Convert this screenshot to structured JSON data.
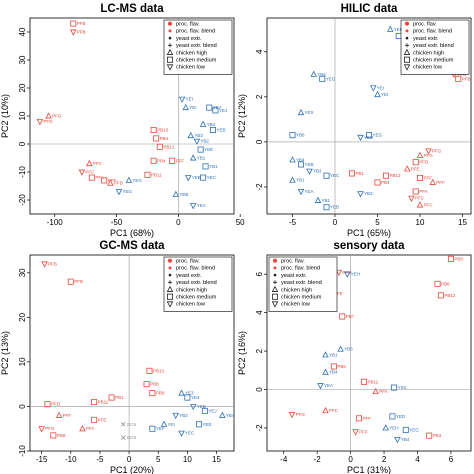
{
  "colors": {
    "red": "#e8473b",
    "blue": "#2e6fb5",
    "black": "#222222",
    "grey": "#8a8a8a"
  },
  "legend_entries": [
    {
      "label": "proc. flav.",
      "shape": "circle-filled",
      "color": "red"
    },
    {
      "label": "proc. flav. blend",
      "shape": "circle-filled-small",
      "color": "red"
    },
    {
      "label": "yeast extr.",
      "shape": "dot",
      "color": "black"
    },
    {
      "label": "yeast extr. blend",
      "shape": "plus",
      "color": "black"
    },
    {
      "label": "chicken high",
      "shape": "triangle",
      "color": "black"
    },
    {
      "label": "chicken medium",
      "shape": "square",
      "color": "black"
    },
    {
      "label": "chicken low",
      "shape": "triangle-down",
      "color": "black"
    }
  ],
  "chart_data": [
    {
      "type": "scatter",
      "title": "LC-MS data",
      "xlabel": "PC1 (68%)",
      "ylabel": "PC2 (10%)",
      "xlim": [
        -120,
        45
      ],
      "ylim": [
        -25,
        45
      ],
      "xticks": [
        -100,
        -50,
        0,
        50
      ],
      "yticks": [
        -20,
        -10,
        0,
        10,
        20,
        30,
        40
      ],
      "reference_lines": {
        "x": 0,
        "y": 0
      },
      "legend": "top-right",
      "points": [
        {
          "x": -85,
          "y": 43,
          "label": "PFB",
          "color": "red",
          "shape": "square"
        },
        {
          "x": -85,
          "y": 40,
          "label": "PFB",
          "color": "red",
          "shape": "triangle-down"
        },
        {
          "x": -105,
          "y": 10,
          "label": "PFG",
          "color": "red",
          "shape": "triangle"
        },
        {
          "x": -112,
          "y": 8,
          "label": "PFG",
          "color": "red",
          "shape": "triangle-down"
        },
        {
          "x": -72,
          "y": -7,
          "label": "PFC",
          "color": "red",
          "shape": "triangle"
        },
        {
          "x": -78,
          "y": -10,
          "label": "PFC",
          "color": "red",
          "shape": "triangle-down"
        },
        {
          "x": -70,
          "y": -12,
          "label": "PFA",
          "color": "red",
          "shape": "square"
        },
        {
          "x": -60,
          "y": -13,
          "label": "PFE",
          "color": "red",
          "shape": "square"
        },
        {
          "x": -55,
          "y": -14,
          "label": "PFD",
          "color": "red",
          "shape": "triangle"
        },
        {
          "x": -20,
          "y": 5,
          "label": "PB13",
          "color": "red",
          "shape": "square"
        },
        {
          "x": -18,
          "y": 2,
          "label": "PB4",
          "color": "red",
          "shape": "square"
        },
        {
          "x": -15,
          "y": -1,
          "label": "PB12",
          "color": "red",
          "shape": "square"
        },
        {
          "x": -20,
          "y": -6,
          "label": "PB4",
          "color": "red",
          "shape": "square"
        },
        {
          "x": -25,
          "y": -11,
          "label": "PB11",
          "color": "red",
          "shape": "square"
        },
        {
          "x": -40,
          "y": -13,
          "label": "YEG",
          "color": "blue",
          "shape": "triangle"
        },
        {
          "x": -48,
          "y": -17,
          "label": "YEG",
          "color": "blue",
          "shape": "triangle-down"
        },
        {
          "x": 5,
          "y": 40,
          "label": "YEF",
          "color": "blue",
          "shape": "triangle"
        },
        {
          "x": 8,
          "y": 37,
          "label": "YEF",
          "color": "blue",
          "shape": "square"
        },
        {
          "x": 3,
          "y": 16,
          "label": "YEI",
          "color": "blue",
          "shape": "triangle-down"
        },
        {
          "x": 6,
          "y": 13,
          "label": "YEI",
          "color": "blue",
          "shape": "triangle"
        },
        {
          "x": 25,
          "y": 13,
          "label": "YEJ",
          "color": "blue",
          "shape": "square"
        },
        {
          "x": 30,
          "y": 12,
          "label": "YEJ",
          "color": "blue",
          "shape": "square"
        },
        {
          "x": 20,
          "y": 7,
          "label": "YB4",
          "color": "blue",
          "shape": "triangle"
        },
        {
          "x": 28,
          "y": 5,
          "label": "YEB",
          "color": "blue",
          "shape": "square"
        },
        {
          "x": 10,
          "y": 3,
          "label": "YB3",
          "color": "blue",
          "shape": "triangle"
        },
        {
          "x": 15,
          "y": 1,
          "label": "YB2",
          "color": "blue",
          "shape": "triangle-down"
        },
        {
          "x": 18,
          "y": -2,
          "label": "YEE",
          "color": "blue",
          "shape": "square"
        },
        {
          "x": 12,
          "y": -5,
          "label": "YB1",
          "color": "blue",
          "shape": "triangle"
        },
        {
          "x": 22,
          "y": -8,
          "label": "YB1",
          "color": "blue",
          "shape": "square"
        },
        {
          "x": 20,
          "y": -12,
          "label": "YEC",
          "color": "blue",
          "shape": "square"
        },
        {
          "x": 8,
          "y": -12,
          "label": "YEB",
          "color": "blue",
          "shape": "triangle-down"
        },
        {
          "x": -2,
          "y": -18,
          "label": "YEB",
          "color": "blue",
          "shape": "triangle"
        },
        {
          "x": 12,
          "y": -22,
          "label": "YEA",
          "color": "blue",
          "shape": "triangle-down"
        },
        {
          "x": -5,
          "y": -6,
          "label": "PFF",
          "color": "red",
          "shape": "square"
        }
      ]
    },
    {
      "type": "scatter",
      "title": "HILIC data",
      "xlabel": "PC1 (65%)",
      "ylabel": "PC2 (12%)",
      "xlim": [
        -8,
        16
      ],
      "ylim": [
        -3.2,
        5.5
      ],
      "xticks": [
        -5,
        0,
        5,
        10,
        15
      ],
      "yticks": [
        -2,
        0,
        2,
        4
      ],
      "reference_lines": {
        "x": 0,
        "y": 0
      },
      "legend": "top-right",
      "points": [
        {
          "x": 6.5,
          "y": 5.0,
          "label": "YEF",
          "color": "blue",
          "shape": "triangle"
        },
        {
          "x": 7.5,
          "y": 4.7,
          "label": "YEF",
          "color": "blue",
          "shape": "square"
        },
        {
          "x": 14,
          "y": 3.0,
          "label": "PFB",
          "color": "red",
          "shape": "triangle-down"
        },
        {
          "x": 14.5,
          "y": 2.8,
          "label": "PFB",
          "color": "red",
          "shape": "square"
        },
        {
          "x": -2.5,
          "y": 3.0,
          "label": "YB4",
          "color": "blue",
          "shape": "triangle"
        },
        {
          "x": -1.5,
          "y": 2.8,
          "label": "YEG",
          "color": "blue",
          "shape": "square"
        },
        {
          "x": 4.5,
          "y": 2.4,
          "label": "YEI",
          "color": "blue",
          "shape": "triangle-down"
        },
        {
          "x": 5,
          "y": 2.1,
          "label": "YEI",
          "color": "blue",
          "shape": "triangle"
        },
        {
          "x": -4,
          "y": 1.3,
          "label": "YEX",
          "color": "blue",
          "shape": "triangle"
        },
        {
          "x": -5,
          "y": 0.3,
          "label": "YB6",
          "color": "blue",
          "shape": "square"
        },
        {
          "x": 3,
          "y": 0.2,
          "label": "YEG",
          "color": "blue",
          "shape": "triangle-down"
        },
        {
          "x": 4,
          "y": 0.3,
          "label": "YEG",
          "color": "blue",
          "shape": "square"
        },
        {
          "x": -5,
          "y": -0.8,
          "label": "YB4",
          "color": "blue",
          "shape": "triangle"
        },
        {
          "x": -4,
          "y": -1.0,
          "label": "YEB",
          "color": "blue",
          "shape": "square"
        },
        {
          "x": -3,
          "y": -1.3,
          "label": "YB2",
          "color": "blue",
          "shape": "triangle-down"
        },
        {
          "x": -5,
          "y": -1.7,
          "label": "YB1",
          "color": "blue",
          "shape": "triangle"
        },
        {
          "x": -1,
          "y": -1.5,
          "label": "YEC",
          "color": "blue",
          "shape": "square"
        },
        {
          "x": -4,
          "y": -2.2,
          "label": "YEA",
          "color": "blue",
          "shape": "triangle-down"
        },
        {
          "x": -2,
          "y": -2.6,
          "label": "YB1",
          "color": "blue",
          "shape": "triangle"
        },
        {
          "x": -1,
          "y": -2.9,
          "label": "YEB",
          "color": "blue",
          "shape": "square"
        },
        {
          "x": 3,
          "y": -2.3,
          "label": "YB3",
          "color": "blue",
          "shape": "triangle-down"
        },
        {
          "x": 2,
          "y": -1.4,
          "label": "PB1",
          "color": "red",
          "shape": "square"
        },
        {
          "x": 5,
          "y": -1.8,
          "label": "PB4",
          "color": "red",
          "shape": "square"
        },
        {
          "x": 6,
          "y": -1.5,
          "label": "PB13",
          "color": "red",
          "shape": "square"
        },
        {
          "x": 8.5,
          "y": -1.2,
          "label": "PFE",
          "color": "red",
          "shape": "triangle"
        },
        {
          "x": 9.5,
          "y": -0.9,
          "label": "PFD",
          "color": "red",
          "shape": "square"
        },
        {
          "x": 11,
          "y": -0.4,
          "label": "PFG",
          "color": "red",
          "shape": "triangle-down"
        },
        {
          "x": 10,
          "y": -0.6,
          "label": "PFG",
          "color": "red",
          "shape": "triangle"
        },
        {
          "x": 10,
          "y": -1.6,
          "label": "PFF",
          "color": "red",
          "shape": "square"
        },
        {
          "x": 9.5,
          "y": -2.2,
          "label": "PFA",
          "color": "red",
          "shape": "square"
        },
        {
          "x": 9,
          "y": -2.5,
          "label": "PFC",
          "color": "red",
          "shape": "triangle-down"
        },
        {
          "x": 10,
          "y": -2.8,
          "label": "PFC",
          "color": "red",
          "shape": "triangle"
        },
        {
          "x": 11.5,
          "y": -1.8,
          "label": "PFF",
          "color": "red",
          "shape": "triangle"
        }
      ]
    },
    {
      "type": "scatter",
      "title": "GC-MS data",
      "xlabel": "PC1 (20%)",
      "ylabel": "PC2 (13%)",
      "xlim": [
        -17,
        18
      ],
      "ylim": [
        -10,
        34
      ],
      "xticks": [
        -15,
        -10,
        -5,
        0,
        5,
        10,
        15
      ],
      "yticks": [
        -10,
        0,
        10,
        20,
        30
      ],
      "reference_lines": {
        "x": 0,
        "y": 0
      },
      "legend": "top-right",
      "points": [
        {
          "x": -14.5,
          "y": 32,
          "label": "PFB",
          "color": "red",
          "shape": "triangle-down"
        },
        {
          "x": -10,
          "y": 28,
          "label": "PFB",
          "color": "red",
          "shape": "square"
        },
        {
          "x": 3.5,
          "y": 8,
          "label": "PB13",
          "color": "red",
          "shape": "square"
        },
        {
          "x": 3,
          "y": 5,
          "label": "PB8",
          "color": "red",
          "shape": "square"
        },
        {
          "x": 4,
          "y": 3,
          "label": "PB9",
          "color": "red",
          "shape": "square"
        },
        {
          "x": -3,
          "y": 2,
          "label": "PB1",
          "color": "red",
          "shape": "square"
        },
        {
          "x": -6,
          "y": 1,
          "label": "PB11",
          "color": "red",
          "shape": "square"
        },
        {
          "x": -14,
          "y": 0.5,
          "label": "PFD",
          "color": "red",
          "shape": "square"
        },
        {
          "x": -12,
          "y": -2,
          "label": "PFF",
          "color": "red",
          "shape": "triangle"
        },
        {
          "x": -15,
          "y": -5,
          "label": "PFG",
          "color": "red",
          "shape": "triangle-down"
        },
        {
          "x": -13,
          "y": -6.5,
          "label": "PB8",
          "color": "red",
          "shape": "square"
        },
        {
          "x": -8,
          "y": -5,
          "label": "PFA",
          "color": "red",
          "shape": "triangle"
        },
        {
          "x": -6,
          "y": -3,
          "label": "PFE",
          "color": "red",
          "shape": "square"
        },
        {
          "x": -1,
          "y": -4,
          "label": "GC6",
          "color": "grey",
          "shape": "cross"
        },
        {
          "x": -1,
          "y": -7,
          "label": "GC6",
          "color": "grey",
          "shape": "cross"
        },
        {
          "x": 9,
          "y": 3,
          "label": "YE3",
          "color": "blue",
          "shape": "triangle"
        },
        {
          "x": 10,
          "y": 2,
          "label": "YE4",
          "color": "blue",
          "shape": "square"
        },
        {
          "x": 11,
          "y": 0,
          "label": "YEB",
          "color": "blue",
          "shape": "triangle-down"
        },
        {
          "x": 13,
          "y": -1,
          "label": "YEJ",
          "color": "blue",
          "shape": "square"
        },
        {
          "x": 16,
          "y": -2,
          "label": "YB4",
          "color": "blue",
          "shape": "triangle"
        },
        {
          "x": 12,
          "y": -4,
          "label": "YEE",
          "color": "blue",
          "shape": "square"
        },
        {
          "x": 8,
          "y": -2,
          "label": "YB2",
          "color": "blue",
          "shape": "triangle-down"
        },
        {
          "x": 6,
          "y": -4,
          "label": "YEI",
          "color": "blue",
          "shape": "triangle"
        },
        {
          "x": 4,
          "y": -5,
          "label": "YEF",
          "color": "blue",
          "shape": "square"
        },
        {
          "x": 9,
          "y": -6,
          "label": "YEC",
          "color": "blue",
          "shape": "triangle-down"
        }
      ]
    },
    {
      "type": "scatter",
      "title": "sensory data",
      "xlabel": "PC1 (31%)",
      "ylabel": "PC2 (16%)",
      "xlim": [
        -5,
        7.2
      ],
      "ylim": [
        -3.2,
        7
      ],
      "xticks": [
        -4,
        -2,
        0,
        2,
        4,
        6
      ],
      "yticks": [
        -2,
        0,
        2,
        4,
        6
      ],
      "reference_lines": {
        "x": 0,
        "y": 0
      },
      "legend": "top-left",
      "points": [
        {
          "x": 6.0,
          "y": 6.8,
          "label": "PB8",
          "color": "red",
          "shape": "square"
        },
        {
          "x": -0.7,
          "y": 6.1,
          "label": "PFD",
          "color": "red",
          "shape": "triangle-down"
        },
        {
          "x": -0.2,
          "y": 6.0,
          "label": "YEH",
          "color": "blue",
          "shape": "triangle-down"
        },
        {
          "x": -1.2,
          "y": 5.0,
          "label": "PFE",
          "color": "red",
          "shape": "triangle"
        },
        {
          "x": 5.2,
          "y": 5.5,
          "label": "PB8",
          "color": "red",
          "shape": "square"
        },
        {
          "x": 5.4,
          "y": 4.9,
          "label": "PB12",
          "color": "red",
          "shape": "square"
        },
        {
          "x": -0.5,
          "y": 3.8,
          "label": "PB7",
          "color": "red",
          "shape": "square"
        },
        {
          "x": -0.6,
          "y": 2.1,
          "label": "YB3",
          "color": "blue",
          "shape": "triangle"
        },
        {
          "x": -1.5,
          "y": 1.8,
          "label": "YB1",
          "color": "blue",
          "shape": "triangle"
        },
        {
          "x": -1.0,
          "y": 1.2,
          "label": "PB6",
          "color": "red",
          "shape": "square"
        },
        {
          "x": -1.5,
          "y": 0.9,
          "label": "YB4",
          "color": "blue",
          "shape": "triangle"
        },
        {
          "x": -1.8,
          "y": 0.2,
          "label": "YEA",
          "color": "blue",
          "shape": "triangle-down"
        },
        {
          "x": 0.8,
          "y": 0.4,
          "label": "PB11",
          "color": "red",
          "shape": "square"
        },
        {
          "x": 2.6,
          "y": 0.1,
          "label": "YSC",
          "color": "blue",
          "shape": "square"
        },
        {
          "x": 1.5,
          "y": -0.1,
          "label": "PFA",
          "color": "red",
          "shape": "triangle"
        },
        {
          "x": -3.5,
          "y": -1.3,
          "label": "PFG",
          "color": "red",
          "shape": "triangle-down"
        },
        {
          "x": -1.5,
          "y": -1.1,
          "label": "PFC",
          "color": "red",
          "shape": "triangle"
        },
        {
          "x": 0.5,
          "y": -1.5,
          "label": "PFF",
          "color": "red",
          "shape": "square"
        },
        {
          "x": 0.3,
          "y": -2.2,
          "label": "PFF",
          "color": "red",
          "shape": "triangle-down"
        },
        {
          "x": 2.5,
          "y": -1.4,
          "label": "YED",
          "color": "blue",
          "shape": "square"
        },
        {
          "x": 2.1,
          "y": -2.0,
          "label": "YEH",
          "color": "blue",
          "shape": "triangle"
        },
        {
          "x": 2.8,
          "y": -2.6,
          "label": "YB4",
          "color": "blue",
          "shape": "triangle-down"
        },
        {
          "x": 3.3,
          "y": -2.1,
          "label": "YEG",
          "color": "blue",
          "shape": "square"
        },
        {
          "x": 4.7,
          "y": -2.4,
          "label": "PB3",
          "color": "red",
          "shape": "square"
        }
      ]
    }
  ]
}
